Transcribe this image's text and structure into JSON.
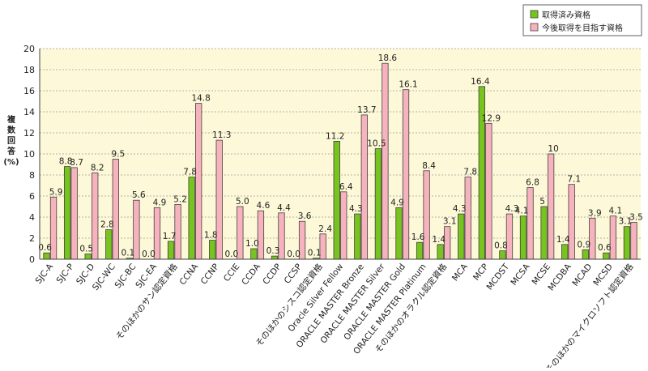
{
  "chart_data": {
    "type": "bar",
    "ylabel": "複数回答（%）",
    "ylabel_chars": [
      "複",
      "数",
      "回",
      "答",
      "(%)"
    ],
    "ylim": [
      0,
      20
    ],
    "yticks": [
      "0",
      "2",
      "4",
      "6",
      "8",
      "10",
      "12",
      "14",
      "16",
      "18",
      "20"
    ],
    "grid": true,
    "legend_position": "top-right",
    "categories": [
      "SJC-A",
      "SJC-P",
      "SJC-D",
      "SJC-WC",
      "SJC-BC",
      "SJC-EA",
      "そのほかのサン認定資格",
      "CCNA",
      "CCNP",
      "CCIE",
      "CCDA",
      "CCDP",
      "CCSP",
      "そのほかのシスコ認定資格",
      "Oracle Silver Fellow",
      "ORACLE MASTER Bronze",
      "ORACLE MASTER Silver",
      "ORACLE MASTER Gold",
      "ORACLE MASTER Platinum",
      "そのほかのオラクル認定資格",
      "MCA",
      "MCP",
      "MCDST",
      "MCSA",
      "MCSE",
      "MCDBA",
      "MCAD",
      "MCSD",
      "そのほかのマイクロソフト認定資格"
    ],
    "series": [
      {
        "name": "取得済み資格",
        "color": "#77c41e",
        "values": [
          0.6,
          8.8,
          0.5,
          2.8,
          0.1,
          0.0,
          1.7,
          7.8,
          1.8,
          0.0,
          1.0,
          0.3,
          0.0,
          0.1,
          11.2,
          4.3,
          10.5,
          4.9,
          1.6,
          1.4,
          4.3,
          16.4,
          0.8,
          4.1,
          5,
          1.4,
          0.9,
          0.6,
          3.1
        ],
        "labels": [
          "0.6",
          "8.8",
          "0.5",
          "2.8",
          "0.1",
          "0.0",
          "1.7",
          "7.8",
          "1.8",
          "0.0",
          "1.0",
          "0.3",
          "0.0",
          "0.1",
          "11.2",
          "4.3",
          "10.5",
          "4.9",
          "1.6",
          "1.4",
          "4.3",
          "16.4",
          "0.8",
          "4.1",
          "5",
          "1.4",
          "0.9",
          "0.6",
          "3.1"
        ]
      },
      {
        "name": "今後取得を目指す資格",
        "color": "#f7b3bd",
        "values": [
          5.9,
          8.7,
          8.2,
          9.5,
          5.6,
          4.9,
          5.2,
          14.8,
          11.3,
          5.0,
          4.6,
          4.4,
          3.6,
          2.4,
          6.4,
          13.7,
          18.6,
          16.1,
          8.4,
          3.1,
          7.8,
          12.9,
          4.3,
          6.8,
          10,
          7.1,
          3.9,
          4.1,
          3.5
        ],
        "labels": [
          "5.9",
          "8.7",
          "8.2",
          "9.5",
          "5.6",
          "4.9",
          "5.2",
          "14.8",
          "11.3",
          "5.0",
          "4.6",
          "4.4",
          "3.6",
          "2.4",
          "6.4",
          "13.7",
          "18.6",
          "16.1",
          "8.4",
          "3.1",
          "7.8",
          "12.9",
          "4.3",
          "6.8",
          "10",
          "7.1",
          "3.9",
          "4.1",
          "3.5"
        ]
      }
    ],
    "colors": {
      "plot_background": "#fdf9d8",
      "gridline": "#9a9a9a",
      "bar_border": "#404040"
    }
  }
}
